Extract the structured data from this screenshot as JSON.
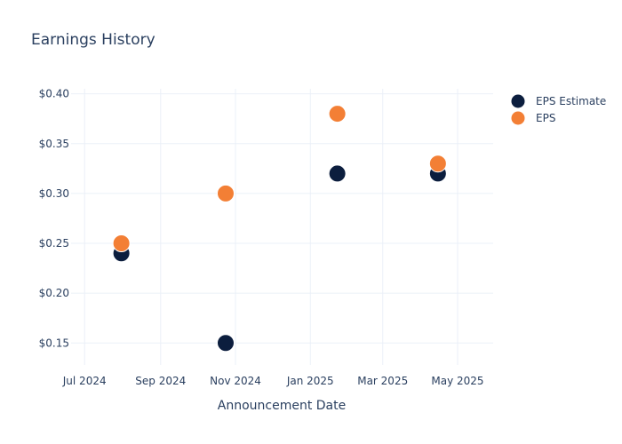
{
  "chart_data": {
    "type": "scatter",
    "title": "Earnings History",
    "xlabel": "Announcement Date",
    "ylabel": "",
    "x_axis_type": "date",
    "xlim": [
      "2024-06-20",
      "2025-05-30"
    ],
    "ylim": [
      0.128,
      0.405
    ],
    "x_ticks": [
      {
        "date": "2024-07-01",
        "label": "Jul 2024"
      },
      {
        "date": "2024-09-01",
        "label": "Sep 2024"
      },
      {
        "date": "2024-11-01",
        "label": "Nov 2024"
      },
      {
        "date": "2025-01-01",
        "label": "Jan 2025"
      },
      {
        "date": "2025-03-01",
        "label": "Mar 2025"
      },
      {
        "date": "2025-05-01",
        "label": "May 2025"
      }
    ],
    "y_ticks": [
      {
        "value": 0.15,
        "label": "$0.15"
      },
      {
        "value": 0.2,
        "label": "$0.20"
      },
      {
        "value": 0.25,
        "label": "$0.25"
      },
      {
        "value": 0.3,
        "label": "$0.30"
      },
      {
        "value": 0.35,
        "label": "$0.35"
      },
      {
        "value": 0.4,
        "label": "$0.40"
      }
    ],
    "grid": true,
    "legend_position": "top-right",
    "series": [
      {
        "name": "EPS Estimate",
        "color": "#0c1e3e",
        "points": [
          {
            "x": "2024-07-31",
            "y": 0.24
          },
          {
            "x": "2024-10-24",
            "y": 0.15
          },
          {
            "x": "2025-01-23",
            "y": 0.32
          },
          {
            "x": "2025-04-15",
            "y": 0.32
          }
        ]
      },
      {
        "name": "EPS",
        "color": "#f37f35",
        "points": [
          {
            "x": "2024-07-31",
            "y": 0.25
          },
          {
            "x": "2024-10-24",
            "y": 0.3
          },
          {
            "x": "2025-01-23",
            "y": 0.38
          },
          {
            "x": "2025-04-15",
            "y": 0.33
          }
        ]
      }
    ]
  }
}
